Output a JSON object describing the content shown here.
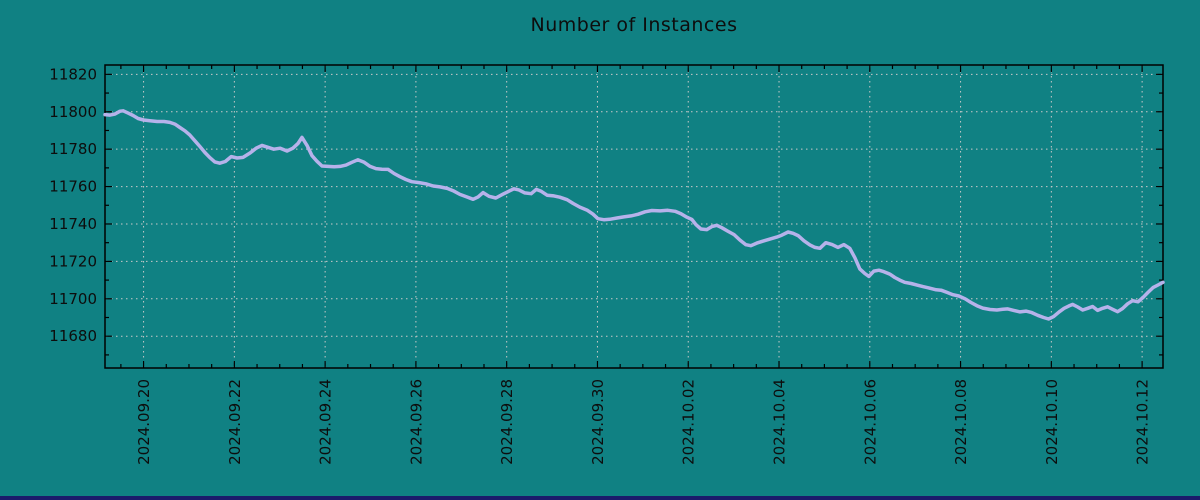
{
  "colors": {
    "background": "#108183",
    "line": "#b6b2ea",
    "grid": "#c9c9c9",
    "axis": "#000000",
    "text": "#0d0d0d",
    "footer_bar": "#1b1b6b"
  },
  "chart_data": {
    "type": "line",
    "title": "Number of Instances",
    "legend": "none",
    "grid": "dashed, at major ticks only",
    "x_axis": {
      "epoch_label": "days relative to 2024.09.20",
      "tick_days": [
        0,
        2,
        4,
        6,
        8,
        10,
        12,
        14,
        16,
        18,
        20,
        22
      ],
      "tick_labels": [
        "2024.09.20",
        "2024.09.22",
        "2024.09.24",
        "2024.09.26",
        "2024.09.28",
        "2024.09.30",
        "2024.10.02",
        "2024.10.04",
        "2024.10.06",
        "2024.10.08",
        "2024.10.10",
        "2024.10.12"
      ],
      "minor_step_days": 0.5,
      "range_days": [
        -0.85,
        22.46
      ]
    },
    "y_axis": {
      "tick_values": [
        11680,
        11700,
        11720,
        11740,
        11760,
        11780,
        11800,
        11820
      ],
      "minor_step": 10,
      "range": [
        11663,
        11825
      ]
    },
    "series": [
      {
        "name": "instances",
        "x_days": [
          -0.85,
          -0.74,
          -0.63,
          -0.52,
          -0.45,
          -0.34,
          -0.23,
          -0.12,
          0,
          0.14,
          0.3,
          0.45,
          0.58,
          0.69,
          0.8,
          0.91,
          1.02,
          1.13,
          1.24,
          1.35,
          1.46,
          1.57,
          1.68,
          1.8,
          1.93,
          2.06,
          2.19,
          2.35,
          2.48,
          2.61,
          2.74,
          2.87,
          3.01,
          3.16,
          3.29,
          3.4,
          3.49,
          3.6,
          3.71,
          3.82,
          3.93,
          4.06,
          4.2,
          4.33,
          4.46,
          4.59,
          4.72,
          4.86,
          4.99,
          5.12,
          5.25,
          5.39,
          5.52,
          5.65,
          5.78,
          5.91,
          6.07,
          6.22,
          6.38,
          6.53,
          6.69,
          6.82,
          6.97,
          7.12,
          7.26,
          7.37,
          7.48,
          7.61,
          7.76,
          7.92,
          8.07,
          8.16,
          8.27,
          8.4,
          8.54,
          8.65,
          8.76,
          8.89,
          9.04,
          9.17,
          9.33,
          9.46,
          9.61,
          9.77,
          9.9,
          10.01,
          10.14,
          10.27,
          10.43,
          10.58,
          10.74,
          10.89,
          11.05,
          11.2,
          11.38,
          11.55,
          11.71,
          11.84,
          11.97,
          12.08,
          12.17,
          12.28,
          12.41,
          12.52,
          12.63,
          12.74,
          12.87,
          13.01,
          13.14,
          13.27,
          13.38,
          13.51,
          13.67,
          13.82,
          13.95,
          14.06,
          14.2,
          14.31,
          14.42,
          14.55,
          14.68,
          14.79,
          14.9,
          15.03,
          15.17,
          15.3,
          15.43,
          15.56,
          15.67,
          15.78,
          15.89,
          15.98,
          16.09,
          16.2,
          16.31,
          16.44,
          16.55,
          16.66,
          16.77,
          16.91,
          17.04,
          17.17,
          17.3,
          17.46,
          17.57,
          17.7,
          17.83,
          17.96,
          18.1,
          18.23,
          18.36,
          18.49,
          18.65,
          18.8,
          18.93,
          19.04,
          19.17,
          19.31,
          19.44,
          19.57,
          19.7,
          19.83,
          19.94,
          20.05,
          20.17,
          20.28,
          20.39,
          20.47,
          20.58,
          20.69,
          20.8,
          20.91,
          21.02,
          21.13,
          21.24,
          21.35,
          21.46,
          21.57,
          21.68,
          21.79,
          21.91,
          22.02,
          22.13,
          22.24,
          22.35,
          22.46
        ],
        "values": [
          11798.5,
          11798.2,
          11798.8,
          11800.3,
          11800.5,
          11799.3,
          11798,
          11796.4,
          11795.6,
          11795.2,
          11794.8,
          11794.8,
          11794.3,
          11793.4,
          11791.6,
          11789.8,
          11787.5,
          11784.5,
          11781.4,
          11778.2,
          11775.5,
          11773.2,
          11772.5,
          11773.4,
          11776,
          11775.3,
          11775.6,
          11778,
          11780.5,
          11782,
          11781,
          11780,
          11780.5,
          11779,
          11780.5,
          11783,
          11786.3,
          11782,
          11776.5,
          11773.5,
          11771,
          11770.8,
          11770.6,
          11770.8,
          11771.5,
          11773,
          11774.3,
          11773,
          11770.8,
          11769.6,
          11769.3,
          11769.2,
          11767,
          11765.3,
          11763.8,
          11762.6,
          11762.1,
          11761.5,
          11760.3,
          11759.8,
          11759,
          11757.8,
          11755.8,
          11754.5,
          11753.2,
          11754.5,
          11756.8,
          11754.8,
          11753.9,
          11756,
          11757.8,
          11758.8,
          11758.2,
          11756.6,
          11756.2,
          11758.5,
          11757.5,
          11755.4,
          11755,
          11754.3,
          11753,
          11751,
          11749,
          11747.4,
          11745.3,
          11742.8,
          11742.3,
          11742.5,
          11743.2,
          11743.8,
          11744.3,
          11745.2,
          11746.5,
          11747.2,
          11747,
          11747.3,
          11746.8,
          11745.5,
          11743.6,
          11742.4,
          11739.6,
          11737.3,
          11737,
          11738.6,
          11739.3,
          11738,
          11736.2,
          11734.3,
          11731.4,
          11728.9,
          11728.4,
          11729.8,
          11731,
          11732.1,
          11733,
          11734,
          11735.7,
          11735,
          11733.8,
          11731,
          11728.8,
          11727.5,
          11727,
          11730,
          11729,
          11727.5,
          11729,
          11727,
          11722,
          11716,
          11713.5,
          11712,
          11714.8,
          11715.3,
          11714.5,
          11713.2,
          11711.4,
          11710,
          11708.8,
          11708.2,
          11707.3,
          11706.5,
          11705.8,
          11704.8,
          11704.6,
          11703.4,
          11702.2,
          11701.5,
          11700,
          11698,
          11696.3,
          11695,
          11694.3,
          11694,
          11694.4,
          11694.6,
          11693.8,
          11693,
          11693.4,
          11692.6,
          11691.2,
          11690,
          11689.2,
          11690.5,
          11693,
          11694.9,
          11696.2,
          11697,
          11695.6,
          11694,
          11694.9,
          11695.9,
          11693.8,
          11694.9,
          11695.7,
          11694.4,
          11693.1,
          11694.8,
          11697.3,
          11699,
          11698.4,
          11700.7,
          11703.4,
          11706,
          11707.4,
          11708.8
        ]
      }
    ]
  }
}
